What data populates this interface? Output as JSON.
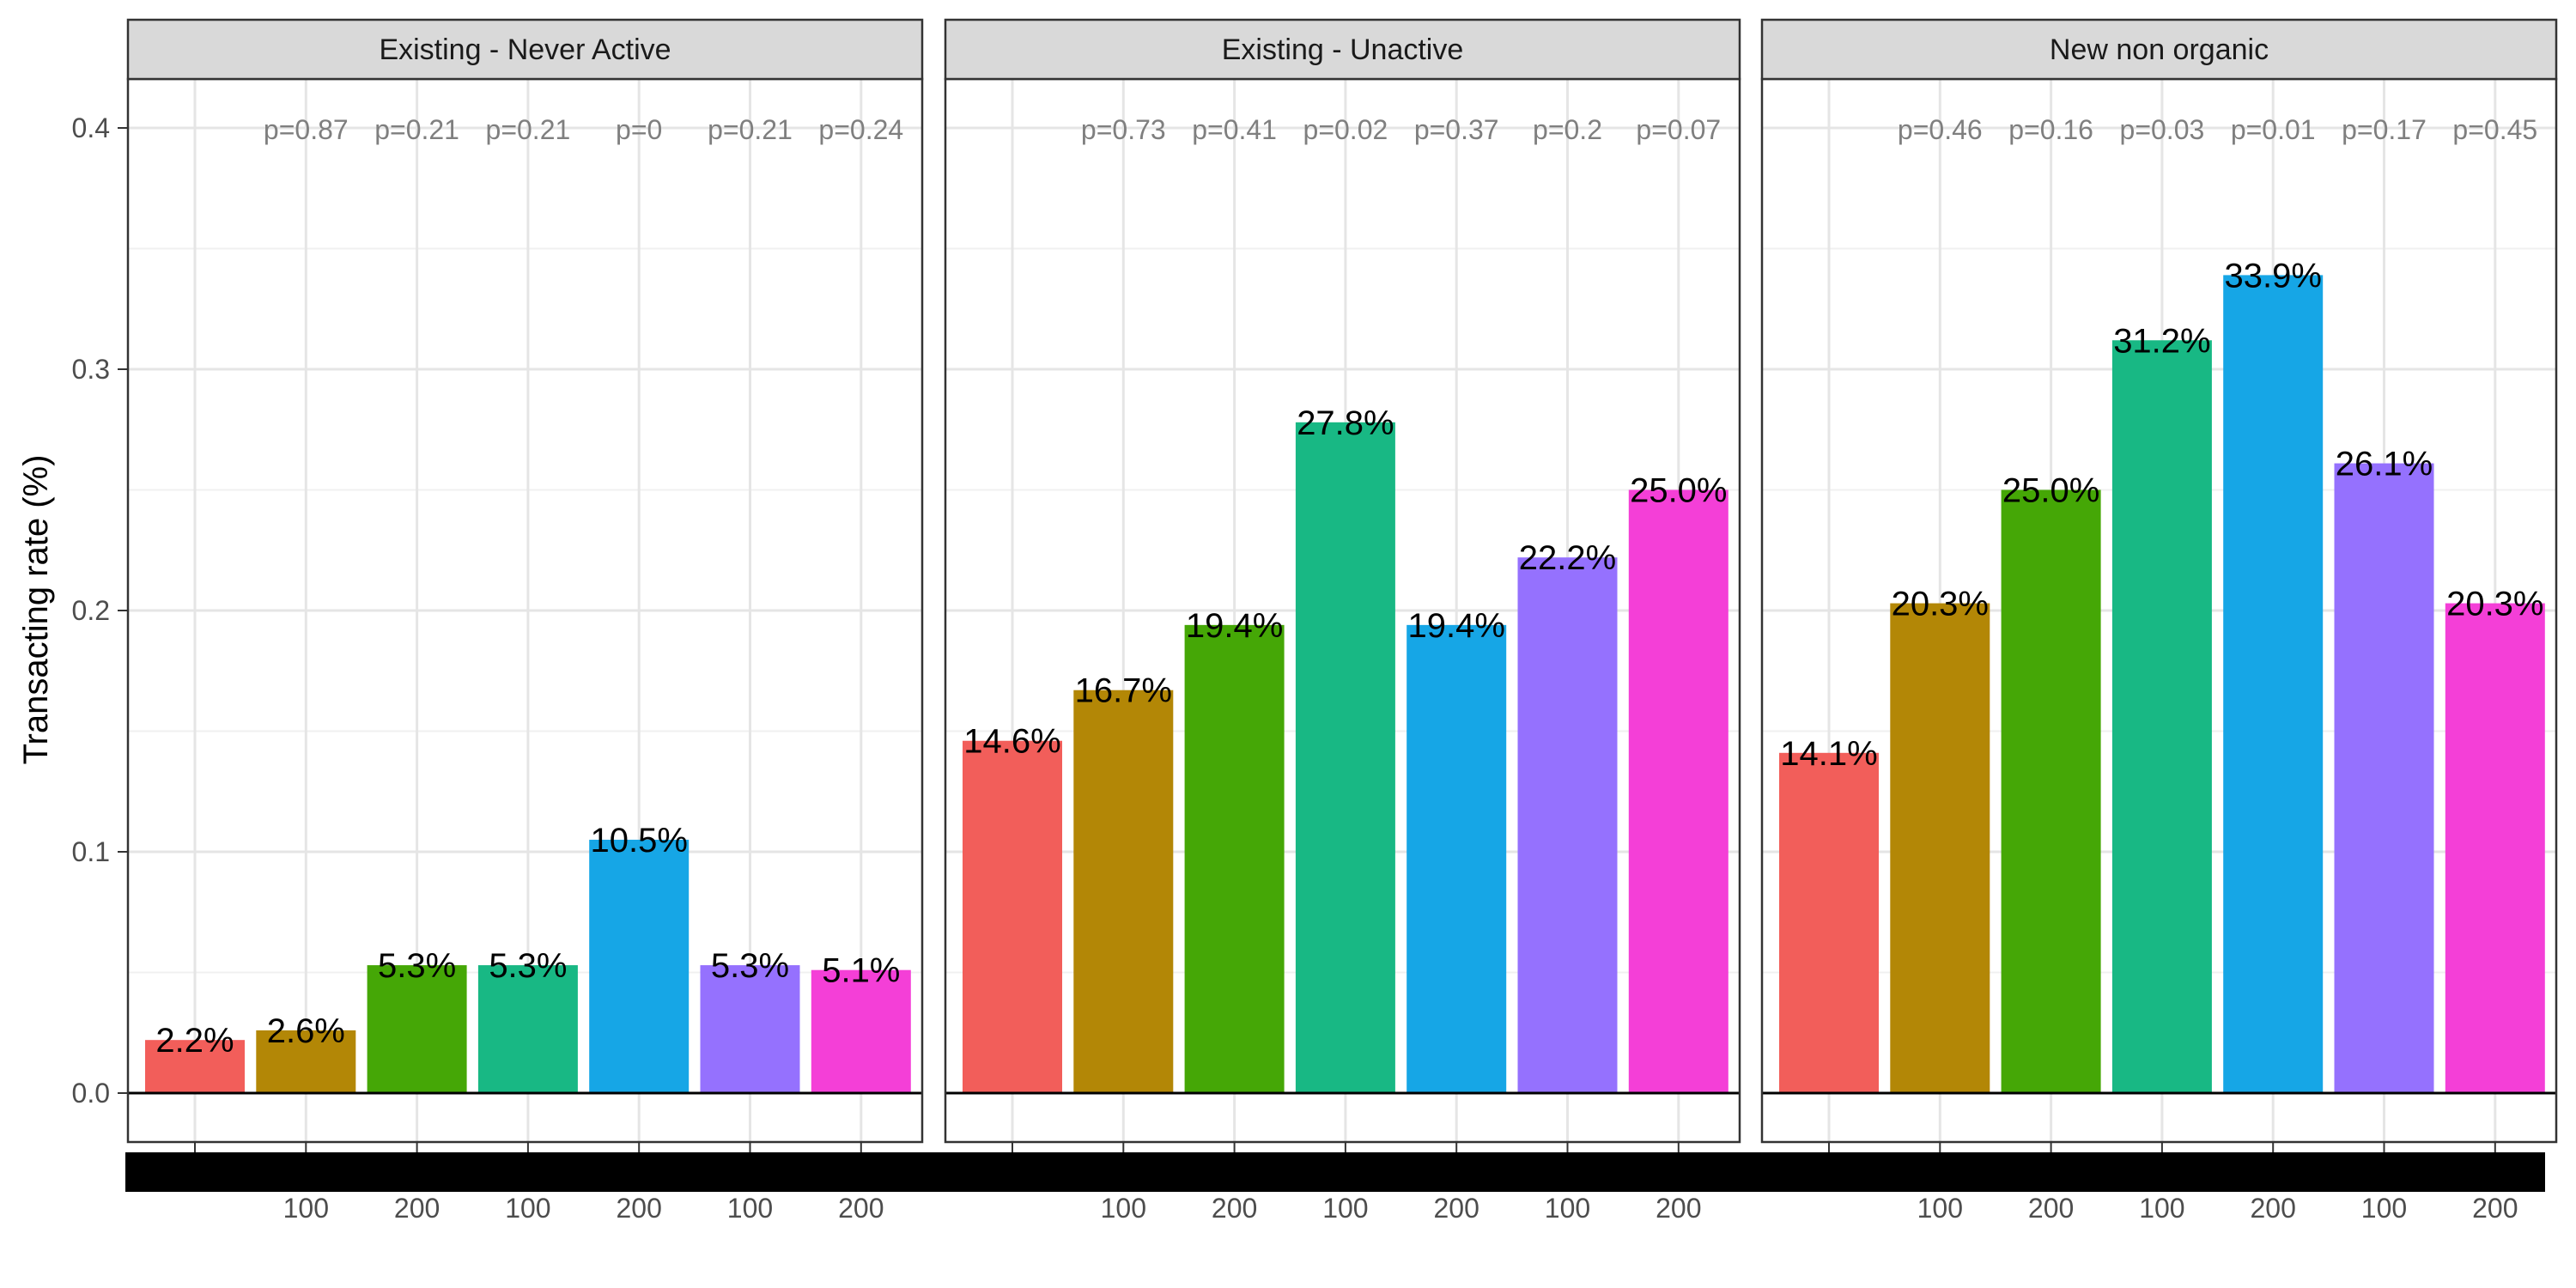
{
  "chart_data": {
    "type": "bar",
    "ylabel": "Transacting rate (%)",
    "ylim": [
      0,
      0.42
    ],
    "yticks": [
      "0.0",
      "0.1",
      "0.2",
      "0.3",
      "0.4"
    ],
    "ytick_values": [
      0,
      0.1,
      0.2,
      0.3,
      0.4
    ],
    "x_tick_labels": [
      "",
      "100",
      "200",
      "100",
      "200",
      "100",
      "200"
    ],
    "colors": [
      "#F25E5A",
      "#B38706",
      "#45A706",
      "#18B884",
      "#16A6E6",
      "#9571FE",
      "#F43FD7"
    ],
    "grid": true,
    "panels": [
      {
        "title": "Existing - Never Active",
        "values": [
          0.022,
          0.026,
          0.053,
          0.053,
          0.105,
          0.053,
          0.051
        ],
        "labels": [
          "2.2%",
          "2.6%",
          "5.3%",
          "5.3%",
          "10.5%",
          "5.3%",
          "5.1%"
        ],
        "pvalues": [
          "",
          "p=0.87",
          "p=0.21",
          "p=0.21",
          "p=0",
          "p=0.21",
          "p=0.24"
        ]
      },
      {
        "title": "Existing - Unactive",
        "values": [
          0.146,
          0.167,
          0.194,
          0.278,
          0.194,
          0.222,
          0.25
        ],
        "labels": [
          "14.6%",
          "16.7%",
          "19.4%",
          "27.8%",
          "19.4%",
          "22.2%",
          "25.0%"
        ],
        "pvalues": [
          "",
          "p=0.73",
          "p=0.41",
          "p=0.02",
          "p=0.37",
          "p=0.2",
          "p=0.07"
        ]
      },
      {
        "title": "New non organic",
        "values": [
          0.141,
          0.203,
          0.25,
          0.312,
          0.339,
          0.261,
          0.203
        ],
        "labels": [
          "14.1%",
          "20.3%",
          "25.0%",
          "31.2%",
          "33.9%",
          "26.1%",
          "20.3%"
        ],
        "pvalues": [
          "",
          "p=0.46",
          "p=0.16",
          "p=0.03",
          "p=0.01",
          "p=0.17",
          "p=0.45"
        ]
      }
    ]
  }
}
